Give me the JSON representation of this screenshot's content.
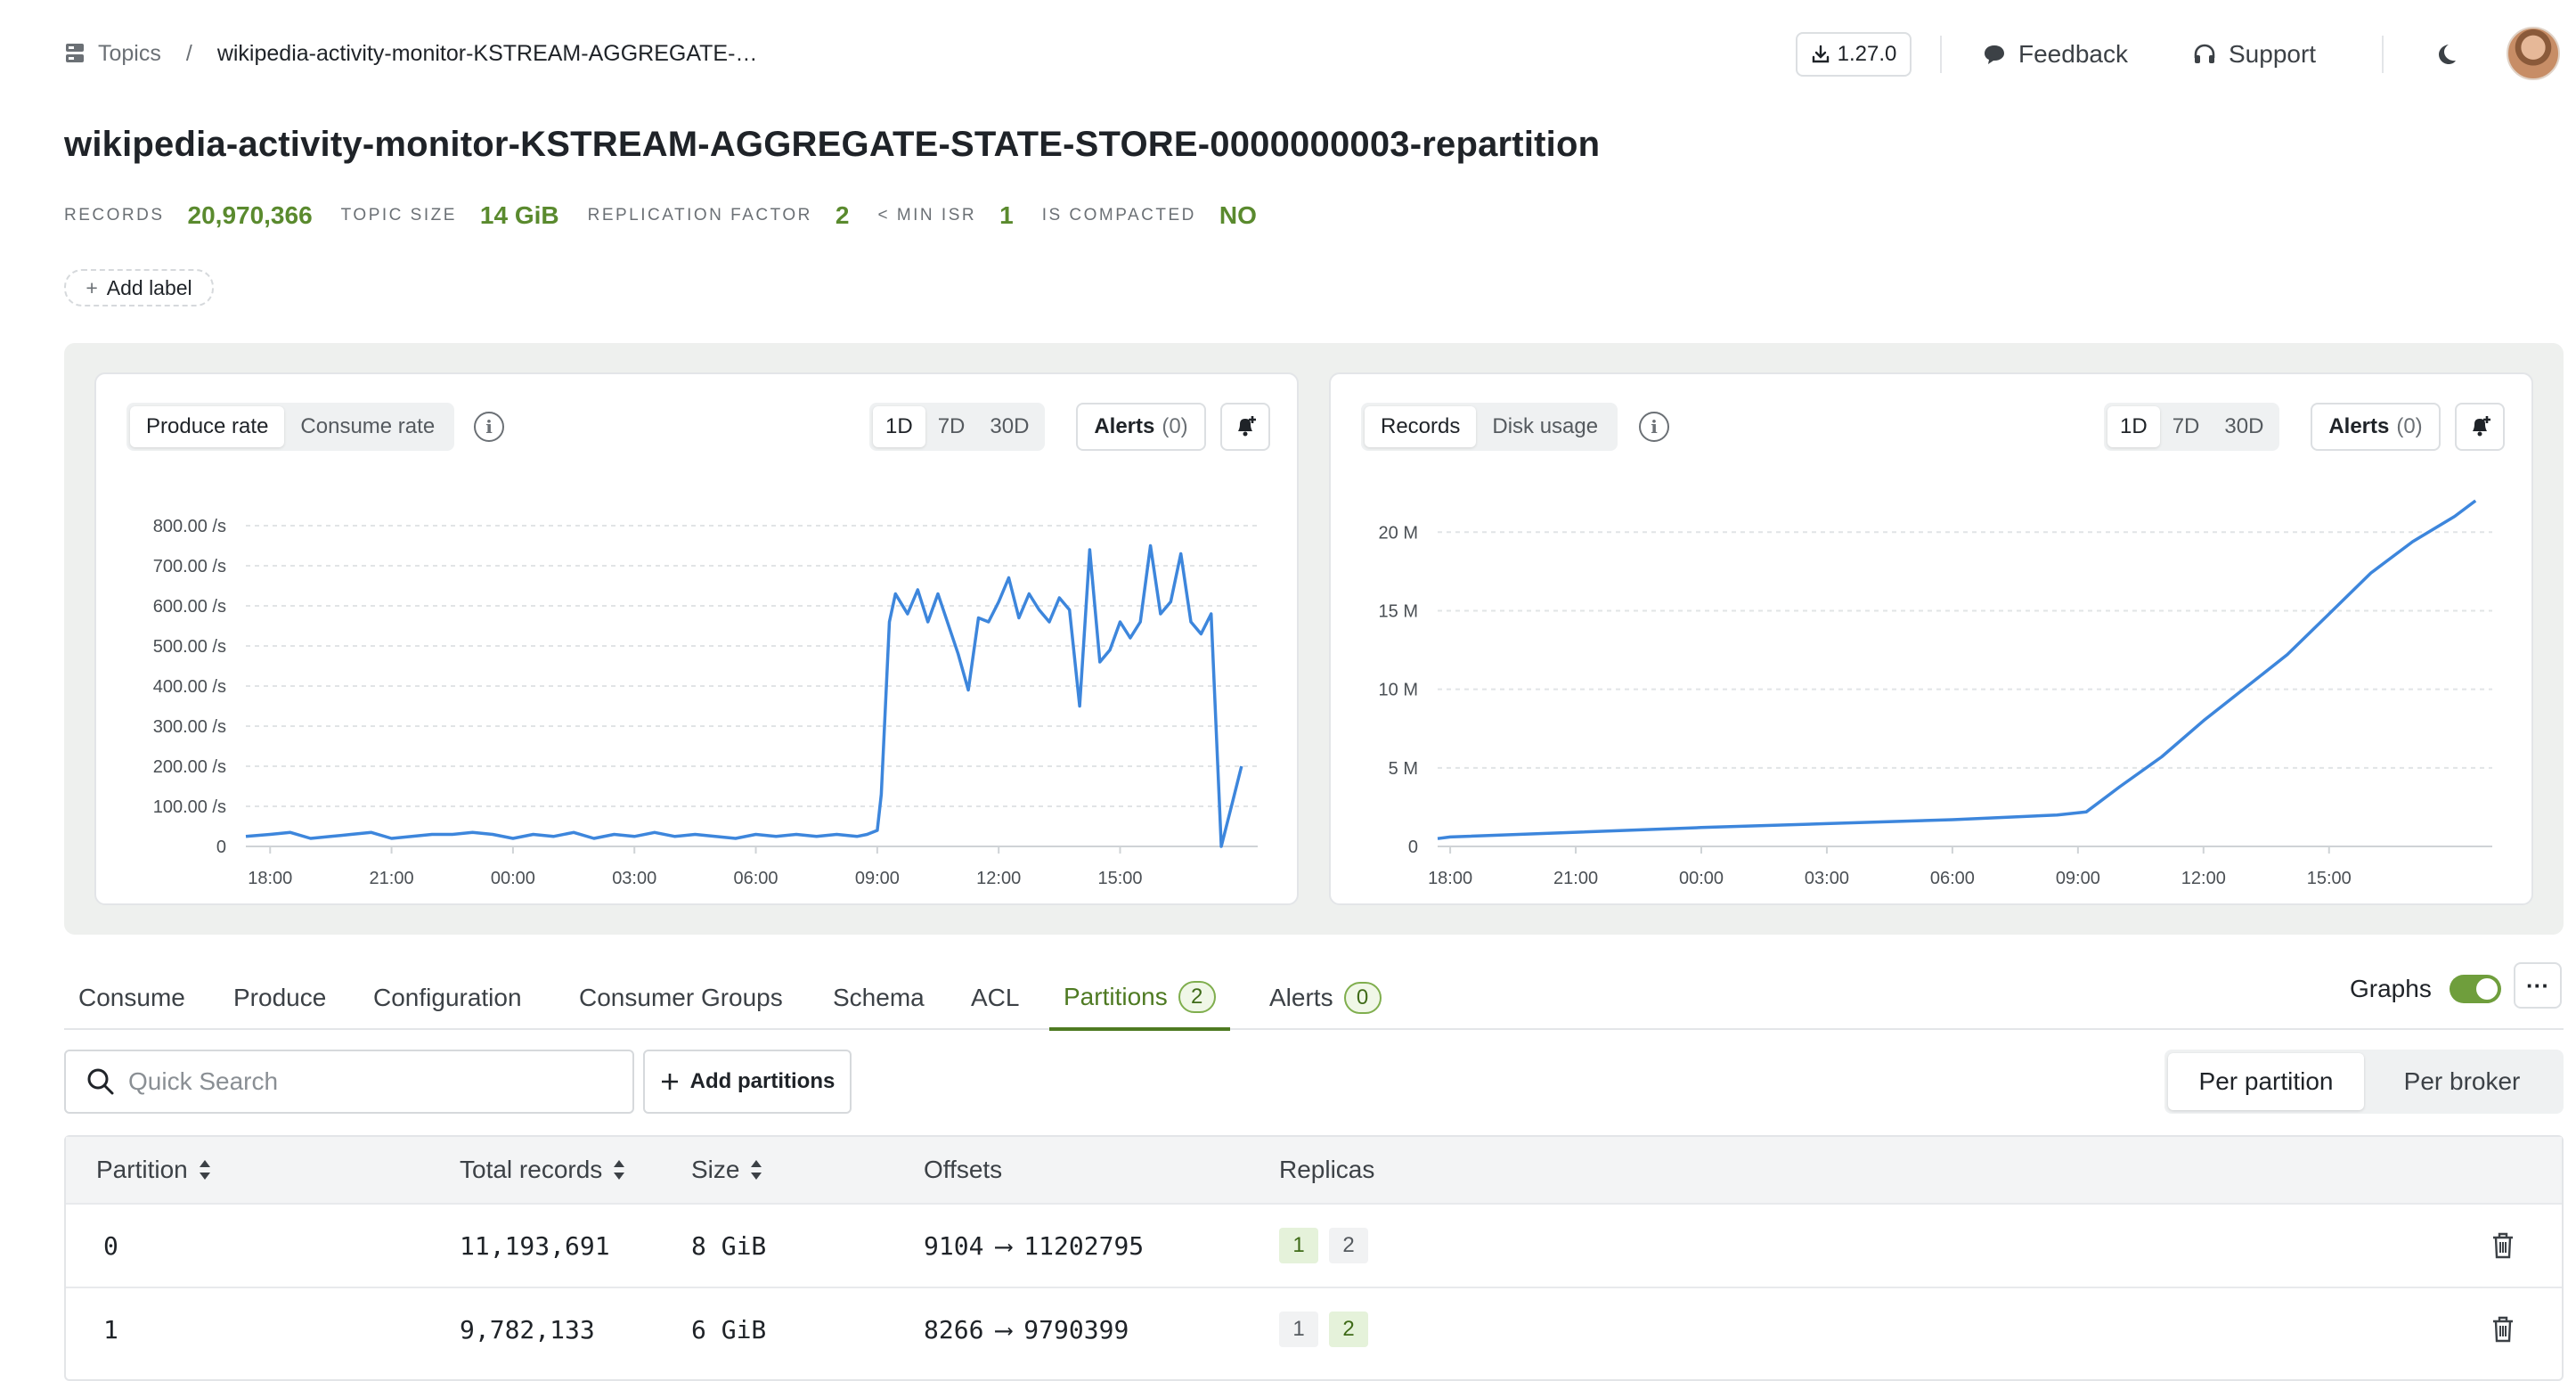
{
  "breadcrumb": {
    "root": "Topics",
    "separator": "/",
    "current": "wikipedia-activity-monitor-KSTREAM-AGGREGATE-…"
  },
  "topbar": {
    "version": "1.27.0",
    "feedback": "Feedback",
    "support": "Support"
  },
  "topic": {
    "title": "wikipedia-activity-monitor-KSTREAM-AGGREGATE-STATE-STORE-0000000003-repartition",
    "stats": {
      "records_label": "RECORDS",
      "records": "20,970,366",
      "size_label": "TOPIC SIZE",
      "size": "14 GiB",
      "replication_label": "REPLICATION FACTOR",
      "replication": "2",
      "minisr_label": "< MIN ISR",
      "minisr": "1",
      "compacted_label": "IS COMPACTED",
      "compacted": "NO"
    },
    "add_label": "Add label"
  },
  "left_chart": {
    "metric_options": [
      "Produce rate",
      "Consume rate"
    ],
    "selected_metric": "Produce rate",
    "ranges": [
      "1D",
      "7D",
      "30D"
    ],
    "selected_range": "1D",
    "alerts_label": "Alerts",
    "alerts_count": "(0)"
  },
  "right_chart": {
    "metric_options": [
      "Records",
      "Disk usage"
    ],
    "selected_metric": "Records",
    "ranges": [
      "1D",
      "7D",
      "30D"
    ],
    "selected_range": "1D",
    "alerts_label": "Alerts",
    "alerts_count": "(0)"
  },
  "chart_data": [
    {
      "type": "line",
      "title": "",
      "ylabel": "",
      "xlabel": "",
      "x_ticks": [
        "18:00",
        "21:00",
        "00:00",
        "03:00",
        "06:00",
        "09:00",
        "12:00",
        "15:00"
      ],
      "y_ticks": [
        "0",
        "100.00 /s",
        "200.00 /s",
        "300.00 /s",
        "400.00 /s",
        "500.00 /s",
        "600.00 /s",
        "700.00 /s",
        "800.00 /s"
      ],
      "ylim": [
        0,
        800
      ],
      "x_hours_range": [
        -0.6,
        24.4
      ],
      "grid": true,
      "color": "#3d86dc",
      "x": [
        -0.6,
        0,
        0.5,
        1,
        1.5,
        2,
        2.5,
        3,
        3.5,
        4,
        4.5,
        5,
        5.5,
        6,
        6.5,
        7,
        7.5,
        8,
        8.5,
        9,
        9.5,
        10,
        10.5,
        11,
        11.5,
        12,
        12.5,
        13,
        13.5,
        14,
        14.5,
        14.75,
        15,
        15.1,
        15.3,
        15.45,
        15.75,
        16,
        16.25,
        16.5,
        17,
        17.25,
        17.5,
        17.75,
        18,
        18.25,
        18.5,
        18.75,
        19,
        19.25,
        19.5,
        19.75,
        20,
        20.25,
        20.5,
        20.75,
        21,
        21.25,
        21.5,
        21.75,
        22,
        22.25,
        22.5,
        22.75,
        23,
        23.25,
        23.5,
        23.75,
        24
      ],
      "y": [
        25,
        30,
        35,
        20,
        25,
        30,
        35,
        20,
        25,
        30,
        30,
        35,
        30,
        20,
        30,
        25,
        35,
        20,
        30,
        25,
        35,
        25,
        30,
        25,
        20,
        30,
        25,
        30,
        25,
        30,
        25,
        30,
        40,
        130,
        560,
        630,
        580,
        640,
        560,
        630,
        480,
        390,
        570,
        560,
        610,
        670,
        570,
        630,
        590,
        560,
        620,
        590,
        350,
        740,
        460,
        490,
        560,
        520,
        560,
        750,
        580,
        610,
        730,
        560,
        530,
        580,
        0,
        100,
        200
      ]
    },
    {
      "type": "line",
      "title": "",
      "ylabel": "",
      "xlabel": "",
      "x_ticks": [
        "18:00",
        "21:00",
        "00:00",
        "03:00",
        "06:00",
        "09:00",
        "12:00",
        "15:00"
      ],
      "y_ticks": [
        "0",
        "5 M",
        "10 M",
        "15 M",
        "20 M"
      ],
      "ylim": [
        0,
        22000000
      ],
      "x_hours_range": [
        -0.3,
        24.9
      ],
      "grid": true,
      "color": "#3d86dc",
      "x": [
        -0.3,
        0,
        3,
        6,
        9,
        12,
        14.5,
        15.2,
        16,
        17,
        18,
        19,
        20,
        21,
        22,
        23,
        24,
        24.5
      ],
      "y": [
        500000,
        600000,
        900000,
        1200000,
        1450000,
        1700000,
        2000000,
        2200000,
        3800000,
        5700000,
        8000000,
        10100000,
        12200000,
        14800000,
        17400000,
        19400000,
        21000000,
        22000000
      ]
    }
  ],
  "tabs": [
    {
      "label": "Consume",
      "badge": ""
    },
    {
      "label": "Produce",
      "badge": ""
    },
    {
      "label": "Configuration",
      "badge": ""
    },
    {
      "label": "Consumer Groups",
      "badge": ""
    },
    {
      "label": "Schema",
      "badge": ""
    },
    {
      "label": "ACL",
      "badge": ""
    },
    {
      "label": "Partitions",
      "badge": "2"
    },
    {
      "label": "Alerts",
      "badge": "0"
    }
  ],
  "active_tab": "Partitions",
  "graphs_label": "Graphs",
  "graphs_enabled": true,
  "more_label": "···",
  "search": {
    "placeholder": "Quick Search",
    "value": ""
  },
  "add_partitions": "Add partitions",
  "view_options": {
    "per_partition": "Per partition",
    "per_broker": "Per broker",
    "selected": "Per partition"
  },
  "table": {
    "headers": {
      "partition": "Partition",
      "total_records": "Total records",
      "size": "Size",
      "offsets": "Offsets",
      "replicas": "Replicas"
    },
    "rows": [
      {
        "partition": "0",
        "total_records": "11,193,691",
        "size": "8 GiB",
        "offset_start": "9104",
        "arrow": "⟶",
        "offset_end": "11202795",
        "replicas": [
          "1",
          "2"
        ],
        "leader": "1"
      },
      {
        "partition": "1",
        "total_records": "9,782,133",
        "size": "6 GiB",
        "offset_start": "8266",
        "arrow": "⟶",
        "offset_end": "9790399",
        "replicas": [
          "1",
          "2"
        ],
        "leader": "2"
      }
    ]
  }
}
